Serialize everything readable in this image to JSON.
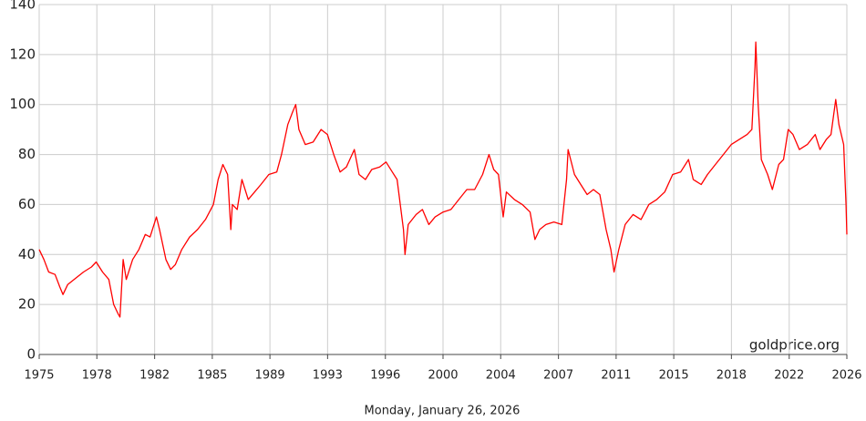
{
  "chart_data": {
    "type": "line",
    "watermark": "goldprice.org",
    "footer": "Monday, January 26, 2026",
    "xlim": [
      1975,
      2026
    ],
    "ylim": [
      0,
      140
    ],
    "yticks": [
      0,
      20,
      40,
      60,
      80,
      100,
      120,
      140
    ],
    "xticks": [
      1975,
      {
        "value": 1978.64,
        "label": "1978"
      },
      {
        "value": 1982.29,
        "label": "1982"
      },
      {
        "value": 1985.93,
        "label": "1985"
      },
      {
        "value": 1989.57,
        "label": "1989"
      },
      {
        "value": 1993.21,
        "label": "1993"
      },
      {
        "value": 1996.86,
        "label": "1996"
      },
      {
        "value": 2000.5,
        "label": "2000"
      },
      {
        "value": 2004.14,
        "label": "2004"
      },
      {
        "value": 2007.79,
        "label": "2007"
      },
      {
        "value": 2011.43,
        "label": "2011"
      },
      {
        "value": 2015.07,
        "label": "2015"
      },
      {
        "value": 2018.71,
        "label": "2018"
      },
      {
        "value": 2022.36,
        "label": "2022"
      },
      2026
    ],
    "grid": true,
    "color": "#ff0000",
    "x": [
      1975.0,
      1975.3,
      1975.6,
      1976.0,
      1976.3,
      1976.5,
      1976.8,
      1977.2,
      1977.8,
      1978.3,
      1978.6,
      1979.0,
      1979.4,
      1979.7,
      1980.0,
      1980.1,
      1980.3,
      1980.5,
      1980.9,
      1981.3,
      1981.7,
      1982.0,
      1982.4,
      1982.6,
      1983.0,
      1983.3,
      1983.6,
      1984.0,
      1984.5,
      1985.0,
      1985.5,
      1986.0,
      1986.3,
      1986.6,
      1986.9,
      1987.1,
      1987.2,
      1987.5,
      1987.8,
      1988.2,
      1988.6,
      1989.0,
      1989.5,
      1990.0,
      1990.3,
      1990.7,
      1991.0,
      1991.2,
      1991.4,
      1991.8,
      1992.3,
      1992.8,
      1993.2,
      1993.6,
      1994.0,
      1994.4,
      1994.9,
      1995.2,
      1995.6,
      1996.0,
      1996.5,
      1996.9,
      1997.3,
      1997.6,
      1998.0,
      1998.1,
      1998.3,
      1998.8,
      1999.2,
      1999.6,
      2000.0,
      2000.5,
      2001.0,
      2001.5,
      2002.0,
      2002.5,
      2003.0,
      2003.4,
      2003.7,
      2004.0,
      2004.3,
      2004.5,
      2005.0,
      2005.5,
      2006.0,
      2006.3,
      2006.6,
      2007.0,
      2007.5,
      2008.0,
      2008.3,
      2008.4,
      2008.8,
      2009.2,
      2009.6,
      2010.0,
      2010.4,
      2010.8,
      2011.1,
      2011.3,
      2011.6,
      2012.0,
      2012.5,
      2013.0,
      2013.5,
      2014.0,
      2014.5,
      2015.0,
      2015.5,
      2016.0,
      2016.3,
      2016.8,
      2017.2,
      2017.7,
      2018.2,
      2018.7,
      2019.2,
      2019.7,
      2020.0,
      2020.2,
      2020.25,
      2020.4,
      2020.6,
      2021.0,
      2021.3,
      2021.7,
      2022.0,
      2022.3,
      2022.6,
      2023.0,
      2023.5,
      2024.0,
      2024.3,
      2024.7,
      2025.0,
      2025.3,
      2025.5,
      2025.8,
      2025.95,
      2026.0
    ],
    "values": [
      42,
      38,
      33,
      32,
      27,
      24,
      28,
      30,
      33,
      35,
      37,
      33,
      30,
      20,
      16,
      15,
      38,
      30,
      38,
      42,
      48,
      47,
      55,
      50,
      38,
      34,
      36,
      42,
      47,
      50,
      54,
      60,
      70,
      76,
      72,
      50,
      60,
      58,
      70,
      62,
      65,
      68,
      72,
      73,
      80,
      92,
      97,
      100,
      90,
      84,
      85,
      90,
      88,
      80,
      73,
      75,
      82,
      72,
      70,
      74,
      75,
      77,
      73,
      70,
      50,
      40,
      52,
      56,
      58,
      52,
      55,
      57,
      58,
      62,
      66,
      66,
      72,
      80,
      74,
      72,
      55,
      65,
      62,
      60,
      57,
      46,
      50,
      52,
      53,
      52,
      70,
      82,
      72,
      68,
      64,
      66,
      64,
      50,
      42,
      33,
      42,
      52,
      56,
      54,
      60,
      62,
      65,
      72,
      73,
      78,
      70,
      68,
      72,
      76,
      80,
      84,
      86,
      88,
      90,
      115,
      125,
      100,
      78,
      72,
      66,
      76,
      78,
      90,
      88,
      82,
      84,
      88,
      82,
      86,
      88,
      102,
      92,
      84,
      60,
      48
    ]
  }
}
